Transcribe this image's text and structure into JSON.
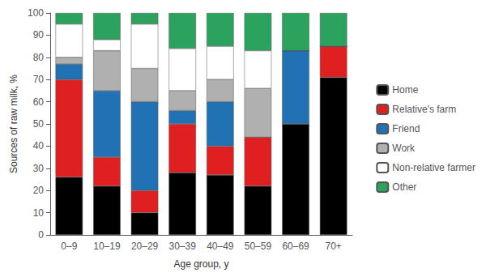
{
  "chart_data": {
    "type": "bar",
    "stacked": true,
    "xlabel": "Age group, y",
    "ylabel": "Sources of raw milk, %",
    "categories": [
      "0–9",
      "10–19",
      "20–29",
      "30–39",
      "40–49",
      "50–59",
      "60–69",
      "70+"
    ],
    "series": [
      {
        "name": "Home",
        "color": "#000000",
        "values": [
          26,
          22,
          10,
          28,
          27,
          22,
          50,
          71
        ]
      },
      {
        "name": "Relative's farm",
        "color": "#e02020",
        "values": [
          44,
          13,
          10,
          22,
          13,
          22,
          0,
          14
        ]
      },
      {
        "name": "Friend",
        "color": "#2171b5",
        "values": [
          7,
          30,
          40,
          6,
          20,
          0,
          33,
          0
        ]
      },
      {
        "name": "Work",
        "color": "#b0b0b0",
        "values": [
          3,
          18,
          15,
          9,
          10,
          22,
          0,
          0
        ]
      },
      {
        "name": "Non-relative farmer",
        "color": "#ffffff",
        "values": [
          15,
          5,
          20,
          19,
          15,
          17,
          0,
          0
        ]
      },
      {
        "name": "Other",
        "color": "#2ca25f",
        "values": [
          5,
          12,
          5,
          16,
          15,
          17,
          17,
          15
        ]
      }
    ],
    "ylim": [
      0,
      100
    ],
    "yticks": [
      0,
      10,
      20,
      30,
      40,
      50,
      60,
      70,
      80,
      90,
      100
    ],
    "grid": false,
    "legend": "right"
  }
}
